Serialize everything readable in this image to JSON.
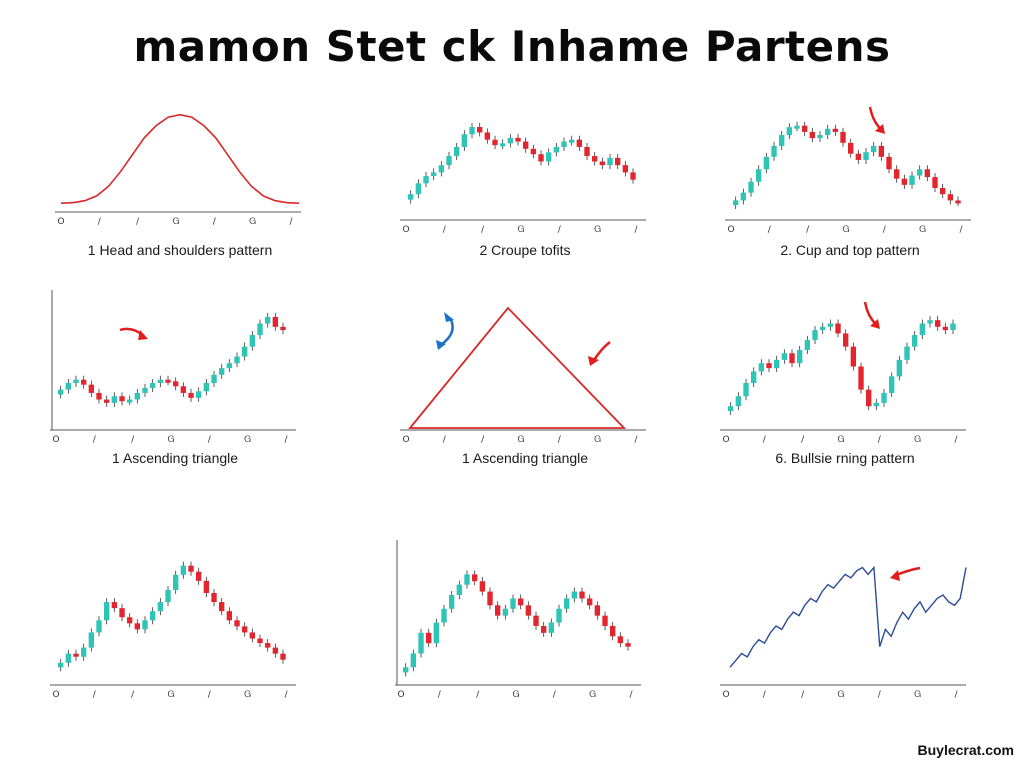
{
  "page": {
    "title": "mamon Stet ck Inhame Partens",
    "watermark": "Buylecrat.com"
  },
  "colors": {
    "bull": "#2ec4b6",
    "bear": "#e3262e",
    "curve": "#d62828",
    "arrow_red": "#e11d1d",
    "arrow_blue": "#1a73c9",
    "line": "#1f4e9c",
    "axis": "#555555"
  },
  "chart_data": [
    {
      "id": "p1",
      "type": "line",
      "caption": "1 Head and shoulders pattern",
      "x_ticks": [
        "O",
        "/",
        "/",
        "Ꮐ",
        "/",
        "Ꮐ",
        "/"
      ],
      "x": [
        0,
        1,
        2,
        3,
        4,
        5,
        6,
        7,
        8,
        9,
        10,
        11,
        12,
        13,
        14,
        15,
        16,
        17,
        18,
        19,
        20
      ],
      "values": [
        2,
        2.2,
        3,
        5,
        9,
        15,
        22,
        29,
        34,
        37.5,
        38.5,
        37.5,
        34,
        29,
        22,
        15,
        9,
        5,
        3,
        2.2,
        2
      ],
      "ylim": [
        0,
        45
      ]
    },
    {
      "id": "p2",
      "type": "candlestick",
      "caption": "2 Croupe tofits",
      "x_ticks": [
        "O",
        "/",
        "/",
        "Ꮐ",
        "/",
        "Ꮐ",
        "/"
      ],
      "values": [
        12,
        18,
        22,
        24,
        28,
        33,
        38,
        45,
        49,
        46,
        42,
        39,
        40,
        43,
        41,
        37,
        34,
        30,
        35,
        38,
        41,
        42,
        38,
        33,
        30,
        28,
        32,
        28,
        24,
        20
      ],
      "ylim": [
        0,
        60
      ],
      "annotations": []
    },
    {
      "id": "p3",
      "type": "candlestick",
      "caption": "2. Cup and top pattern",
      "x_ticks": [
        "O",
        "/",
        "/",
        "Ꮐ",
        "/",
        "Ꮐ",
        "/"
      ],
      "values": [
        10,
        15,
        22,
        30,
        38,
        45,
        52,
        57,
        58,
        54,
        50,
        52,
        56,
        54,
        47,
        40,
        36,
        41,
        45,
        38,
        30,
        24,
        20,
        26,
        30,
        25,
        18,
        14,
        10,
        9
      ],
      "ylim": [
        0,
        70
      ],
      "annotations": [
        {
          "kind": "arrow-down",
          "color": "red"
        }
      ]
    },
    {
      "id": "p4",
      "type": "candlestick",
      "caption": "1 Ascending triangle",
      "x_ticks": [
        "O",
        "/",
        "/",
        "Ꮐ",
        "/",
        "Ꮐ",
        "/"
      ],
      "values": [
        22,
        26,
        28,
        25,
        20,
        16,
        14,
        18,
        15,
        16,
        20,
        23,
        26,
        28,
        27,
        24,
        20,
        17,
        21,
        26,
        31,
        35,
        38,
        42,
        48,
        55,
        62,
        66,
        60,
        58
      ],
      "ylim": [
        0,
        75
      ],
      "annotations": [
        {
          "kind": "arrow-right",
          "color": "red"
        }
      ]
    },
    {
      "id": "p5",
      "type": "diagram",
      "caption": "1 Ascending triangle",
      "x_ticks": [
        "O",
        "/",
        "/",
        "Ꮐ",
        "/",
        "Ꮐ",
        "/"
      ],
      "annotations": [
        {
          "kind": "curved-arrow",
          "color": "blue"
        },
        {
          "kind": "arrow-down-left",
          "color": "red"
        }
      ]
    },
    {
      "id": "p6",
      "type": "candlestick",
      "caption": "6. Bullsie rning pattern",
      "x_ticks": [
        "O",
        "/",
        "/",
        "Ꮐ",
        "/",
        "Ꮐ",
        "/"
      ],
      "values": [
        12,
        18,
        26,
        33,
        38,
        35,
        40,
        44,
        38,
        46,
        52,
        58,
        60,
        62,
        56,
        48,
        36,
        22,
        12,
        14,
        20,
        30,
        40,
        48,
        55,
        62,
        64,
        60,
        58,
        62
      ],
      "ylim": [
        0,
        75
      ],
      "annotations": [
        {
          "kind": "arrow-down",
          "color": "red"
        }
      ]
    },
    {
      "id": "p7",
      "type": "candlestick",
      "caption": "",
      "x_ticks": [
        "O",
        "/",
        "/",
        "Ꮐ",
        "/",
        "Ꮐ",
        "/"
      ],
      "values": [
        12,
        18,
        16,
        22,
        32,
        40,
        52,
        48,
        42,
        38,
        34,
        40,
        46,
        52,
        60,
        70,
        76,
        72,
        66,
        58,
        52,
        46,
        40,
        36,
        32,
        28,
        25,
        22,
        18,
        14
      ],
      "ylim": [
        0,
        85
      ],
      "annotations": []
    },
    {
      "id": "p8",
      "type": "candlestick",
      "caption": "",
      "x_ticks": [
        "O",
        "/",
        "/",
        "Ꮐ",
        "/",
        "Ꮐ",
        "/"
      ],
      "values": [
        8,
        16,
        28,
        22,
        34,
        42,
        50,
        56,
        62,
        58,
        52,
        44,
        38,
        42,
        48,
        44,
        38,
        32,
        28,
        34,
        42,
        48,
        52,
        48,
        44,
        38,
        32,
        26,
        22,
        20
      ],
      "ylim": [
        0,
        75
      ],
      "annotations": []
    },
    {
      "id": "p9",
      "type": "line",
      "caption": "",
      "x_ticks": [
        "O",
        "/",
        "/",
        "Ꮐ",
        "/",
        "Ꮐ",
        "/"
      ],
      "values": [
        8,
        12,
        16,
        14,
        20,
        24,
        22,
        28,
        32,
        30,
        36,
        40,
        38,
        44,
        48,
        46,
        52,
        56,
        54,
        58,
        62,
        60,
        64,
        66,
        62,
        66,
        20,
        30,
        26,
        34,
        40,
        36,
        42,
        46,
        40,
        44,
        48,
        50,
        46,
        44,
        48,
        66
      ],
      "ylim": [
        0,
        75
      ],
      "annotations": [
        {
          "kind": "arrow-left",
          "color": "red"
        }
      ]
    }
  ]
}
